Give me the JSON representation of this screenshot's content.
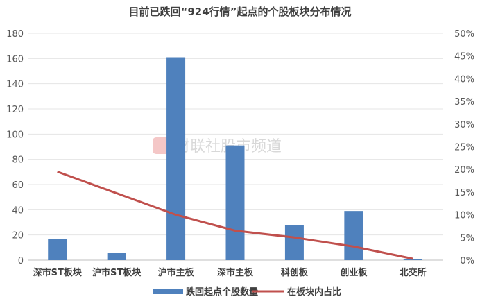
{
  "chart_data": {
    "type": "bar",
    "title": "目前已跌回“924行情”起点的个股板块分布情况",
    "categories": [
      "深市ST板块",
      "沪市ST板块",
      "沪市主板",
      "深市主板",
      "科创板",
      "创业板",
      "北交所"
    ],
    "series": [
      {
        "name": "跌回起点个股数量",
        "kind": "bar",
        "axis": "left",
        "values": [
          17,
          6,
          161,
          91,
          28,
          39,
          1
        ],
        "color": "#4f81bd"
      },
      {
        "name": "在板块内占比",
        "kind": "line",
        "axis": "right",
        "values": [
          19.5,
          null,
          10,
          6.5,
          5,
          3,
          0.3
        ],
        "color": "#c0504d"
      }
    ],
    "ylim": [
      0,
      180
    ],
    "yticks": [
      "0",
      "20",
      "40",
      "60",
      "80",
      "100",
      "120",
      "140",
      "160",
      "180"
    ],
    "y2lim": [
      0,
      50
    ],
    "y2ticks": [
      "0%",
      "5%",
      "10%",
      "15%",
      "20%",
      "25%",
      "30%",
      "35%",
      "40%",
      "45%",
      "50%"
    ],
    "xlabel": "",
    "ylabel": "",
    "grid": true,
    "legend": "bottom"
  },
  "watermark": "财联社股市频道"
}
